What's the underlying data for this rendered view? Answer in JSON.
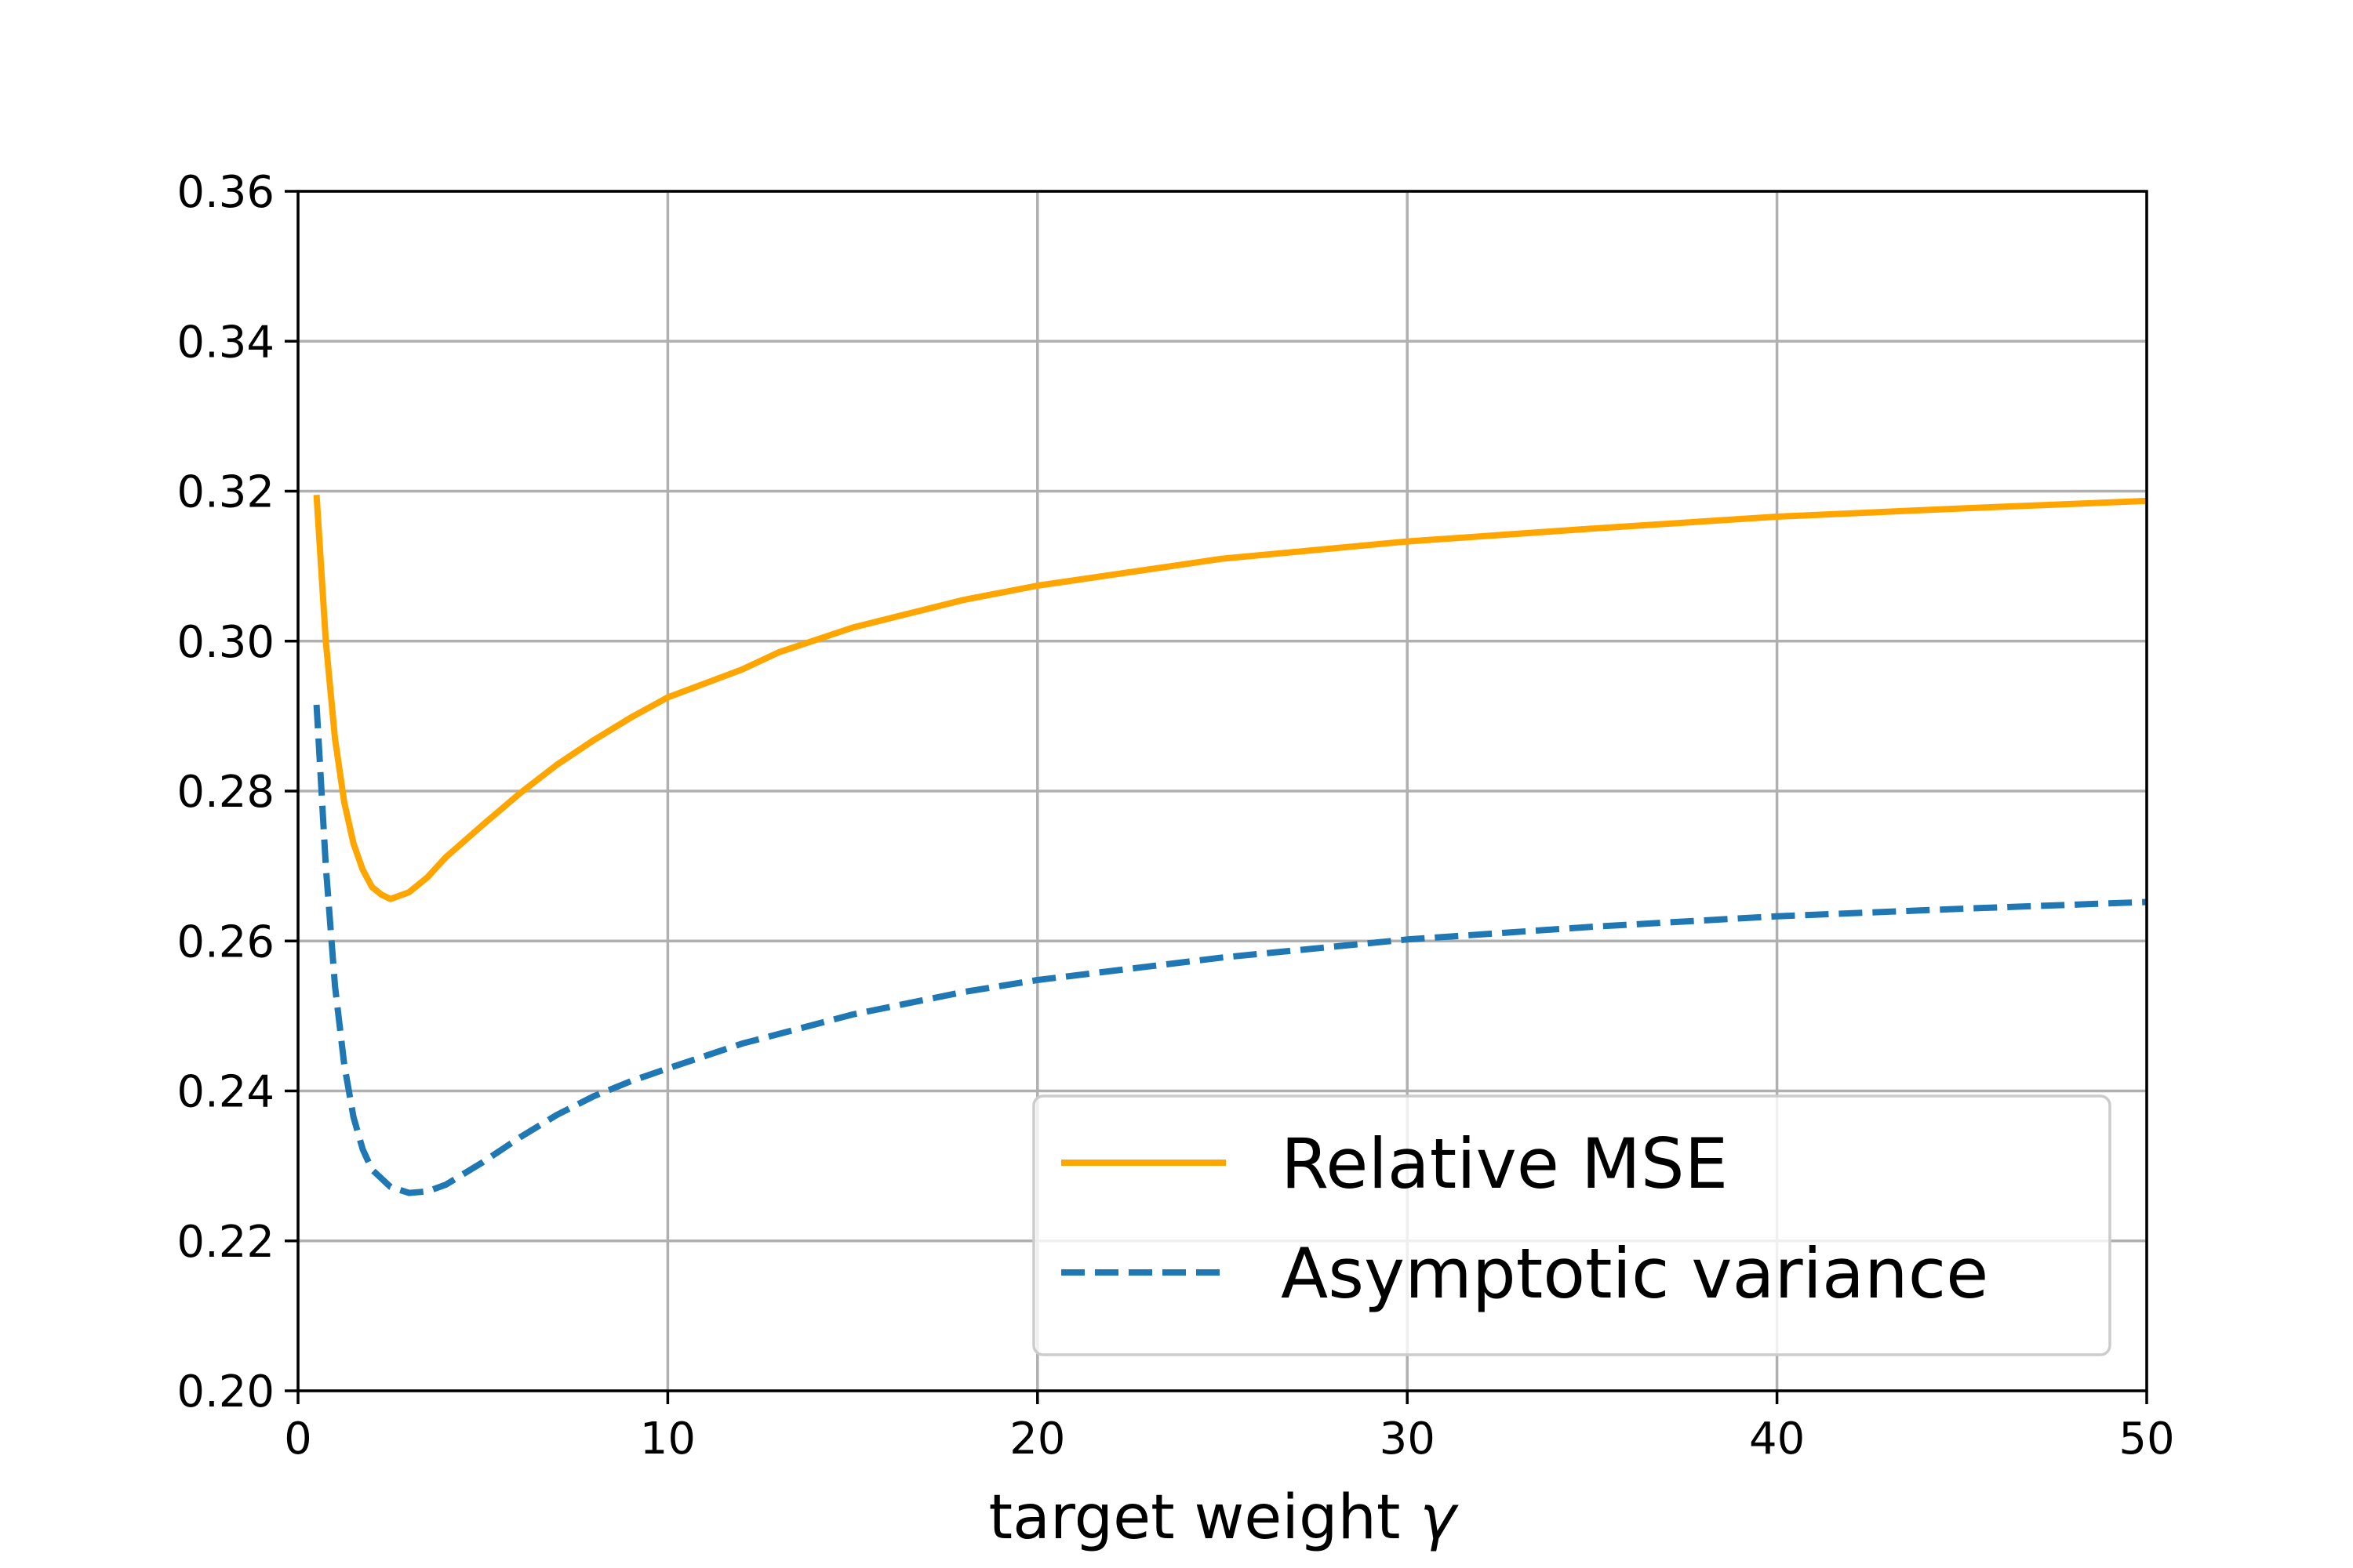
{
  "chart_data": {
    "type": "line",
    "title": "",
    "xlabel": "target weight",
    "xlabel_symbol": "γ",
    "ylabel": "",
    "xlim": [
      0,
      50
    ],
    "ylim": [
      0.2,
      0.36
    ],
    "xticks": [
      0,
      10,
      20,
      30,
      40,
      50
    ],
    "yticks": [
      0.2,
      0.22,
      0.24,
      0.26,
      0.28,
      0.3,
      0.32,
      0.34,
      0.36
    ],
    "xtick_labels": [
      "0",
      "10",
      "20",
      "30",
      "40",
      "50"
    ],
    "ytick_labels": [
      "0.20",
      "0.22",
      "0.24",
      "0.26",
      "0.28",
      "0.30",
      "0.32",
      "0.34",
      "0.36"
    ],
    "grid": true,
    "legend_position": "lower-right",
    "series": [
      {
        "name": "Relative MSE",
        "color": "#FFA500",
        "style": "solid",
        "x": [
          0.5,
          0.75,
          1,
          1.25,
          1.5,
          1.75,
          2,
          2.25,
          2.5,
          3,
          3.5,
          4,
          5,
          6,
          7,
          8,
          9,
          10,
          12,
          13,
          15,
          18,
          20,
          25,
          30,
          35,
          40,
          45,
          50
        ],
        "y": [
          0.3195,
          0.3,
          0.287,
          0.2785,
          0.273,
          0.2695,
          0.2672,
          0.2662,
          0.2656,
          0.2665,
          0.2685,
          0.2712,
          0.2755,
          0.2797,
          0.2835,
          0.2868,
          0.2898,
          0.2925,
          0.2962,
          0.2985,
          0.3018,
          0.3055,
          0.3074,
          0.311,
          0.3133,
          0.315,
          0.3166,
          0.3177,
          0.3187
        ]
      },
      {
        "name": "Asymptotic variance",
        "color": "#1F77B4",
        "style": "dashed",
        "x": [
          0.5,
          0.75,
          1,
          1.25,
          1.5,
          1.75,
          2,
          2.5,
          3,
          3.5,
          4,
          5,
          6,
          7,
          8,
          9,
          10,
          12,
          15,
          18,
          20,
          25,
          30,
          35,
          40,
          45,
          50
        ],
        "y": [
          0.2915,
          0.27,
          0.254,
          0.2435,
          0.2365,
          0.2322,
          0.2295,
          0.2272,
          0.2264,
          0.2266,
          0.2275,
          0.2305,
          0.2338,
          0.2368,
          0.2393,
          0.2413,
          0.243,
          0.2463,
          0.2502,
          0.2532,
          0.2548,
          0.2578,
          0.2602,
          0.2619,
          0.2633,
          0.2643,
          0.2652
        ]
      }
    ]
  }
}
